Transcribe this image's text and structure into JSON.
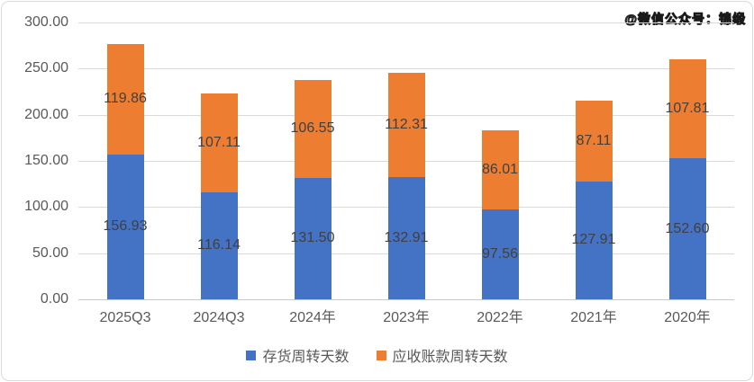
{
  "watermark": {
    "text": "@微信公众号：锦缎"
  },
  "chart_data": {
    "type": "bar",
    "stacked": true,
    "title": "",
    "categories": [
      "2025Q3",
      "2024Q3",
      "2024年",
      "2023年",
      "2022年",
      "2021年",
      "2020年"
    ],
    "series": [
      {
        "name": "存货周转天数",
        "color": "#4472C4",
        "values": [
          156.93,
          116.14,
          131.5,
          132.91,
          97.56,
          127.91,
          152.6
        ]
      },
      {
        "name": "应收账款周转天数",
        "color": "#ED7D31",
        "values": [
          119.86,
          107.11,
          106.55,
          112.31,
          86.01,
          87.11,
          107.81
        ]
      }
    ],
    "value_label_decimals": 2,
    "ylim": [
      0,
      300
    ],
    "ytick_step": 50,
    "ytick_labels": [
      "0.00",
      "50.00",
      "100.00",
      "150.00",
      "200.00",
      "250.00",
      "300.00"
    ],
    "grid": true,
    "legend_position": "bottom",
    "colors": {
      "grid": "#D9D9D9",
      "axis_line": "#C8C8C8",
      "tick_text": "#595959",
      "value_text": "#404040"
    }
  }
}
